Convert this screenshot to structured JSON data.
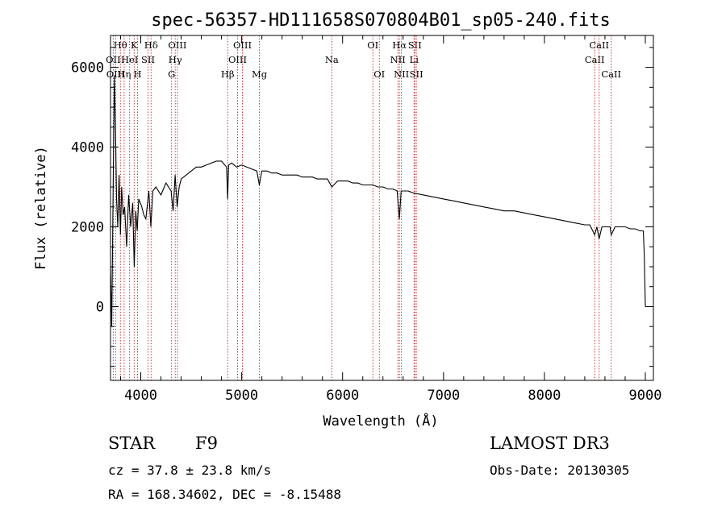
{
  "info": {
    "class_label": "STAR",
    "subclass": "F9",
    "survey": "LAMOST DR3",
    "cz": "cz = 37.8 ± 23.8 km/s",
    "obs_date": "Obs-Date: 20130305",
    "radec": "RA = 168.34602, DEC =  -8.15488"
  },
  "chart_data": {
    "type": "line",
    "title": "spec-56357-HD111658S070804B01_sp05-240.fits",
    "xlabel": "Wavelength (Å)",
    "ylabel": "Flux (relative)",
    "xlim": [
      3700,
      9080
    ],
    "ylim": [
      -1850,
      6800
    ],
    "xticks": [
      4000,
      5000,
      6000,
      7000,
      8000,
      9000
    ],
    "yticks": [
      0,
      2000,
      4000,
      6000
    ],
    "colors": {
      "spectrum": "#000000",
      "lines": "#cc2222"
    },
    "series": [
      {
        "name": "Flux",
        "x": [
          3700,
          3712,
          3725,
          3738,
          3748,
          3760,
          3772,
          3785,
          3798,
          3810,
          3825,
          3840,
          3860,
          3880,
          3900,
          3920,
          3935,
          3950,
          3965,
          3980,
          3995,
          4010,
          4030,
          4050,
          4080,
          4100,
          4120,
          4150,
          4200,
          4250,
          4300,
          4320,
          4340,
          4360,
          4380,
          4400,
          4450,
          4500,
          4550,
          4600,
          4650,
          4700,
          4750,
          4800,
          4850,
          4861,
          4870,
          4900,
          4950,
          5000,
          5050,
          5100,
          5150,
          5175,
          5200,
          5250,
          5300,
          5350,
          5400,
          5450,
          5500,
          5550,
          5600,
          5650,
          5700,
          5750,
          5800,
          5850,
          5893,
          5950,
          6000,
          6050,
          6100,
          6150,
          6200,
          6250,
          6300,
          6350,
          6400,
          6450,
          6500,
          6540,
          6563,
          6580,
          6600,
          6650,
          6700,
          6800,
          6900,
          7000,
          7100,
          7200,
          7300,
          7400,
          7500,
          7600,
          7700,
          7800,
          7900,
          8000,
          8100,
          8200,
          8300,
          8400,
          8450,
          8498,
          8520,
          8542,
          8570,
          8600,
          8650,
          8662,
          8700,
          8750,
          8800,
          8850,
          8900,
          8950,
          8980,
          8990,
          9000
        ],
        "y": [
          1000,
          -500,
          2600,
          5800,
          4700,
          2700,
          2000,
          3300,
          1800,
          3000,
          2300,
          2500,
          1500,
          2800,
          2000,
          2600,
          1000,
          2400,
          1900,
          2700,
          2600,
          2500,
          2300,
          2200,
          2900,
          2000,
          2900,
          3000,
          2800,
          3100,
          2900,
          2400,
          3300,
          2500,
          3000,
          3200,
          3300,
          3400,
          3500,
          3500,
          3550,
          3600,
          3650,
          3650,
          3500,
          2700,
          3550,
          3600,
          3500,
          3550,
          3500,
          3450,
          3400,
          3050,
          3400,
          3400,
          3350,
          3350,
          3300,
          3300,
          3300,
          3300,
          3250,
          3250,
          3250,
          3200,
          3200,
          3200,
          3000,
          3150,
          3150,
          3150,
          3100,
          3100,
          3050,
          3050,
          3050,
          3000,
          3000,
          2950,
          2950,
          2900,
          2200,
          2900,
          2900,
          2900,
          2850,
          2800,
          2750,
          2700,
          2650,
          2600,
          2550,
          2500,
          2450,
          2400,
          2400,
          2350,
          2300,
          2250,
          2200,
          2150,
          2100,
          2050,
          2050,
          1800,
          2000,
          1700,
          2000,
          2000,
          2000,
          1800,
          2000,
          2000,
          2000,
          1950,
          1950,
          1900,
          1900,
          1300,
          0
        ]
      }
    ],
    "line_markers": [
      {
        "name": "OII",
        "wavelength": 3727,
        "row": 1
      },
      {
        "name": "Hθ",
        "wavelength": 3798,
        "row": 0
      },
      {
        "name": "OIII",
        "wavelength": 3750,
        "row": 2
      },
      {
        "name": "Hη",
        "wavelength": 3835,
        "row": 2
      },
      {
        "name": "HeI",
        "wavelength": 3889,
        "row": 1
      },
      {
        "name": "K",
        "wavelength": 3934,
        "row": 0
      },
      {
        "name": "H",
        "wavelength": 3968,
        "row": 2
      },
      {
        "name": "SII",
        "wavelength": 4072,
        "row": 1
      },
      {
        "name": "Hδ",
        "wavelength": 4102,
        "row": 0
      },
      {
        "name": "G",
        "wavelength": 4305,
        "row": 2
      },
      {
        "name": "Hγ",
        "wavelength": 4341,
        "row": 1
      },
      {
        "name": "OIII",
        "wavelength": 4363,
        "row": 0
      },
      {
        "name": "Hβ",
        "wavelength": 4861,
        "row": 2
      },
      {
        "name": "OIII",
        "wavelength": 4959,
        "row": 1
      },
      {
        "name": "OIII",
        "wavelength": 5007,
        "row": 0
      },
      {
        "name": "Mg",
        "wavelength": 5175,
        "row": 2
      },
      {
        "name": "Na",
        "wavelength": 5893,
        "row": 1
      },
      {
        "name": "OI",
        "wavelength": 6300,
        "row": 0
      },
      {
        "name": "OI",
        "wavelength": 6364,
        "row": 2
      },
      {
        "name": "NII",
        "wavelength": 6548,
        "row": 1
      },
      {
        "name": "Hα",
        "wavelength": 6563,
        "row": 0
      },
      {
        "name": "NII",
        "wavelength": 6583,
        "row": 2
      },
      {
        "name": "SII",
        "wavelength": 6716,
        "row": 0
      },
      {
        "name": "Li",
        "wavelength": 6708,
        "row": 1
      },
      {
        "name": "SII",
        "wavelength": 6731,
        "row": 2
      },
      {
        "name": "CaII",
        "wavelength": 8498,
        "row": 1
      },
      {
        "name": "CaII",
        "wavelength": 8542,
        "row": 0
      },
      {
        "name": "CaII",
        "wavelength": 8662,
        "row": 2
      }
    ]
  }
}
